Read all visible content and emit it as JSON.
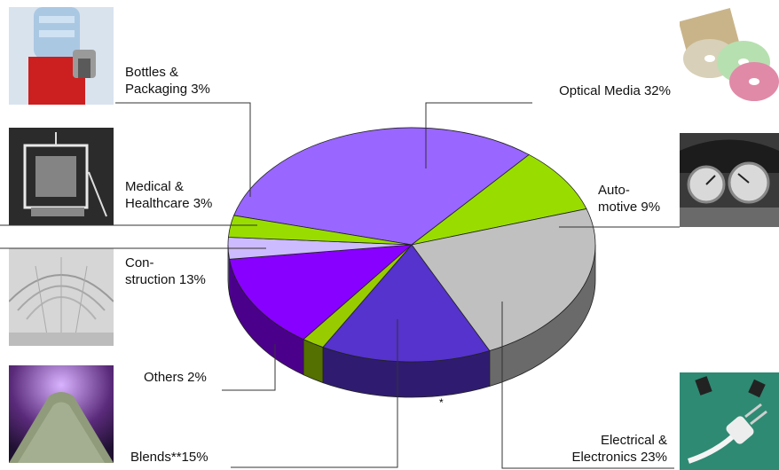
{
  "chart_data": {
    "type": "pie",
    "title": "",
    "slices": [
      {
        "key": "optical",
        "label": "Optical Media 32%",
        "value": 32,
        "color": "#9966ff"
      },
      {
        "key": "auto",
        "label": "Auto-\nmotive 9%",
        "value": 9,
        "color": "#99dd00"
      },
      {
        "key": "elec",
        "label": "Electrical &\nElectronics 23%",
        "value": 23,
        "color": "#c0c0c0"
      },
      {
        "key": "blends",
        "label": "Blends**15%",
        "value": 15,
        "color": "#5533cc"
      },
      {
        "key": "others",
        "label": "Others 2%",
        "value": 2,
        "color": "#99cc00"
      },
      {
        "key": "constr",
        "label": "Con-\nstruction 13%",
        "value": 13,
        "color": "#8800ff"
      },
      {
        "key": "medical",
        "label": "Medical &\nHealthcare 3%",
        "value": 3,
        "color": "#ccbbff"
      },
      {
        "key": "bottles",
        "label": "Bottles &\nPackaging 3%",
        "value": 3,
        "color": "#99dd00"
      }
    ],
    "footnote_marker": "*"
  },
  "photos": {
    "bottles": "water-bottle-photo",
    "medical": "medical-equipment-photo",
    "construction": "glass-roof-photo",
    "blends": "granules-photo",
    "optical": "cd-discs-photo",
    "automotive": "dashboard-photo",
    "electrical": "power-plug-photo"
  }
}
